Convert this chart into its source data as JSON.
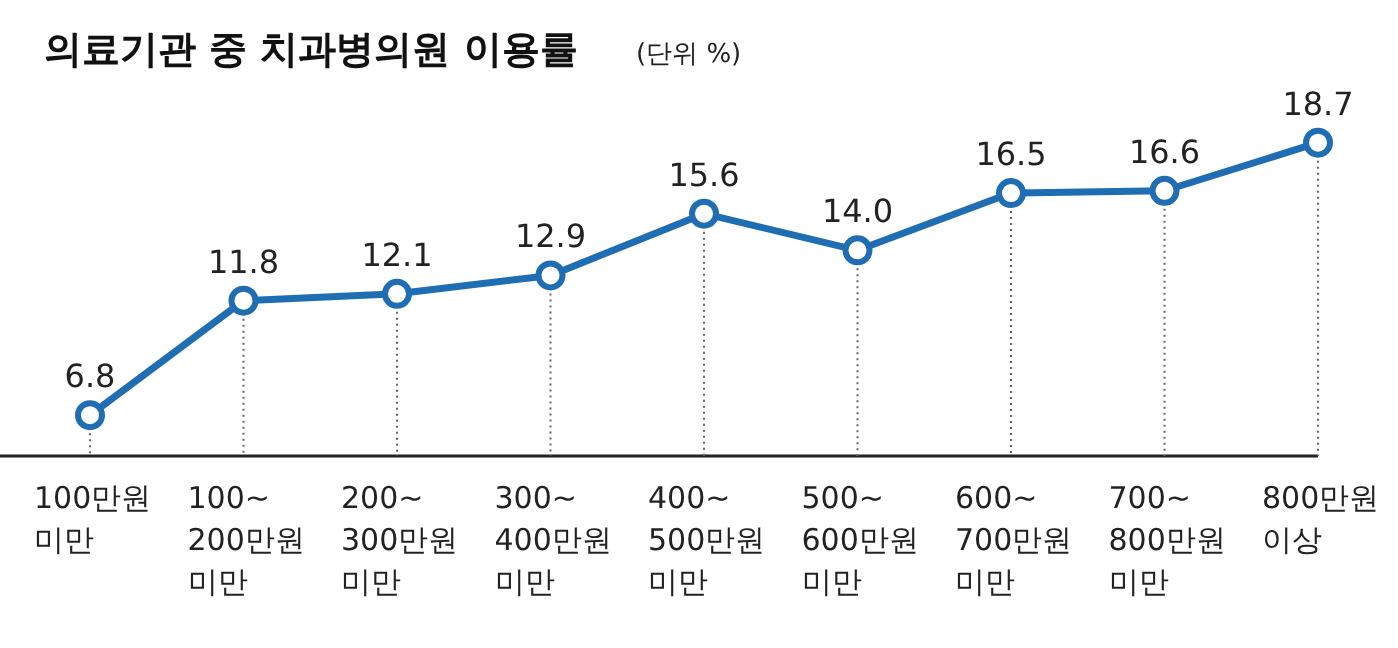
{
  "chart_data": {
    "type": "line",
    "title": "의료기관 중 치과병의원 이용률",
    "subtitle": "(단위 %)",
    "categories": [
      "100만원\n미만",
      "100~\n200만원\n미만",
      "200~\n300만원\n미만",
      "300~\n400만원\n미만",
      "400~\n500만원\n미만",
      "500~\n600만원\n미만",
      "600~\n700만원\n미만",
      "700~\n800만원\n미만",
      "800만원\n이상"
    ],
    "series": [
      {
        "color": "#1f6db3",
        "values": [
          6.8,
          11.8,
          12.1,
          12.9,
          15.6,
          14.0,
          16.5,
          16.6,
          18.7
        ],
        "value_labels": [
          "6.8",
          "11.8",
          "12.1",
          "12.9",
          "15.6",
          "14.0",
          "16.5",
          "16.6",
          "18.7"
        ]
      }
    ],
    "marker": "circle",
    "line_style": "solid",
    "grid": "x",
    "legend": false
  }
}
